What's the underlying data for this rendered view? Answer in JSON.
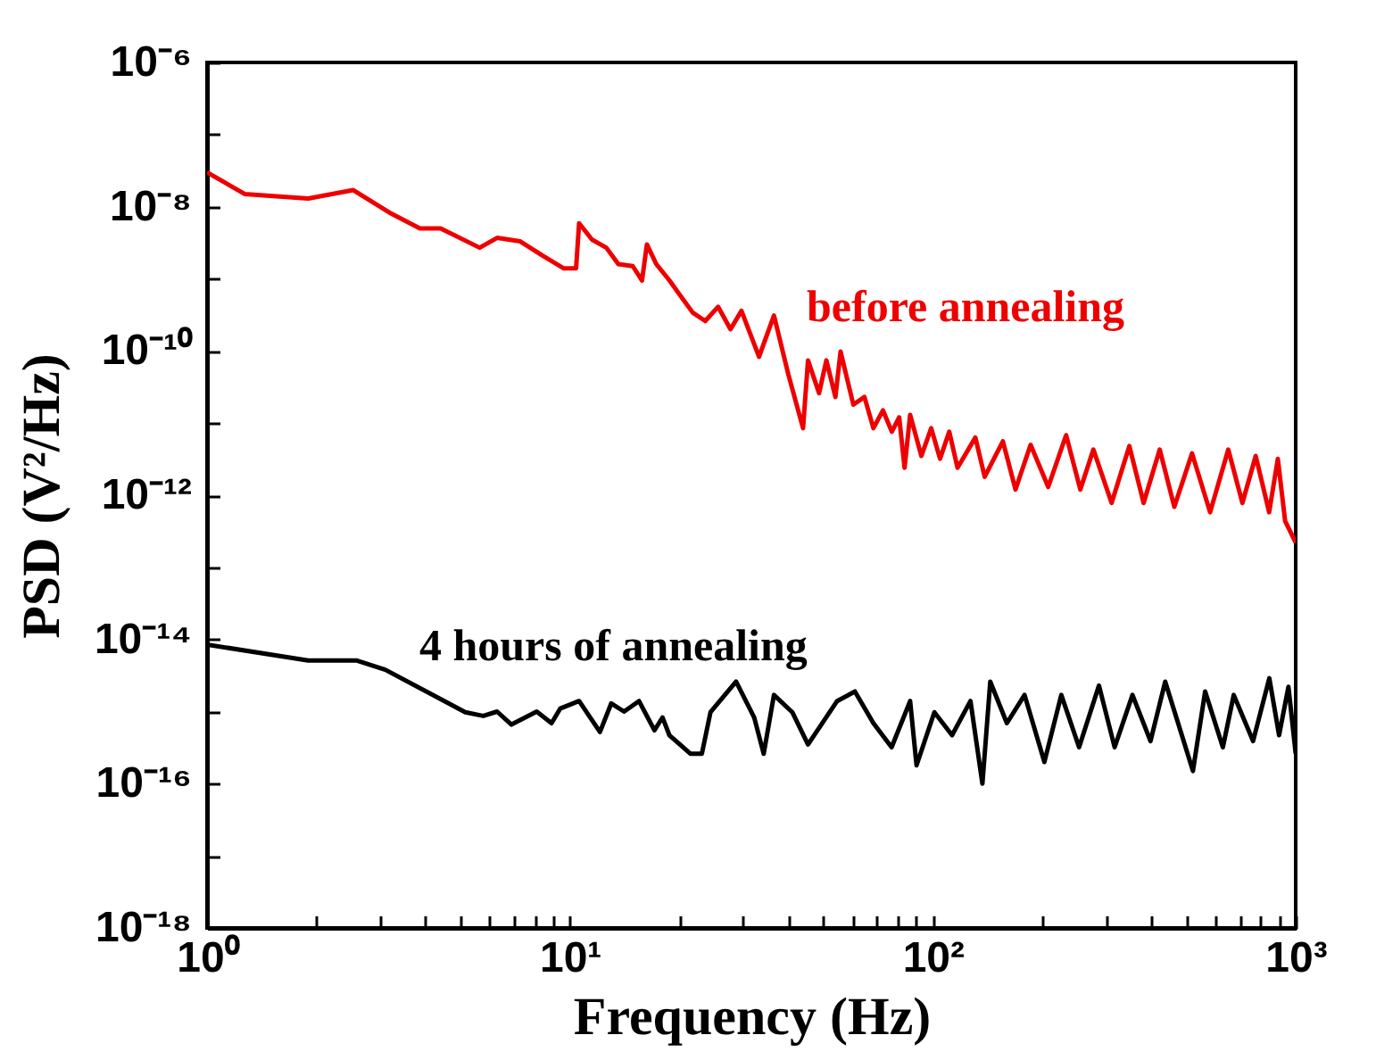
{
  "chart_data": {
    "type": "line",
    "xlabel": "Frequency (Hz)",
    "ylabel": "PSD (V²/Hz)",
    "log": "xy",
    "grid": false,
    "marker": "none",
    "line_style": "solid",
    "xlim": [
      1,
      1000
    ],
    "ylim": [
      1e-18,
      1e-06
    ],
    "xticks": [
      {
        "value": 1,
        "label": "10⁰"
      },
      {
        "value": 2,
        "label": null
      },
      {
        "value": 3,
        "label": null
      },
      {
        "value": 4,
        "label": null
      },
      {
        "value": 5,
        "label": null
      },
      {
        "value": 6,
        "label": null
      },
      {
        "value": 7,
        "label": null
      },
      {
        "value": 8,
        "label": null
      },
      {
        "value": 9,
        "label": null
      },
      {
        "value": 10,
        "label": "10¹"
      },
      {
        "value": 20,
        "label": null
      },
      {
        "value": 30,
        "label": null
      },
      {
        "value": 40,
        "label": null
      },
      {
        "value": 50,
        "label": null
      },
      {
        "value": 60,
        "label": null
      },
      {
        "value": 70,
        "label": null
      },
      {
        "value": 80,
        "label": null
      },
      {
        "value": 90,
        "label": null
      },
      {
        "value": 100,
        "label": "10²"
      },
      {
        "value": 200,
        "label": null
      },
      {
        "value": 300,
        "label": null
      },
      {
        "value": 400,
        "label": null
      },
      {
        "value": 500,
        "label": null
      },
      {
        "value": 600,
        "label": null
      },
      {
        "value": 700,
        "label": null
      },
      {
        "value": 800,
        "label": null
      },
      {
        "value": 900,
        "label": null
      },
      {
        "value": 1000,
        "label": "10³"
      }
    ],
    "yticks": [
      {
        "value": 1e-18,
        "label": "10⁻¹⁸"
      },
      {
        "value": 1e-17,
        "label": null
      },
      {
        "value": 1e-16,
        "label": "10⁻¹⁶"
      },
      {
        "value": 1e-15,
        "label": null
      },
      {
        "value": 1e-14,
        "label": "10⁻¹⁴"
      },
      {
        "value": 1e-13,
        "label": null
      },
      {
        "value": 1e-12,
        "label": "10⁻¹²"
      },
      {
        "value": 1e-11,
        "label": null
      },
      {
        "value": 1e-10,
        "label": "10⁻¹⁰"
      },
      {
        "value": 1e-09,
        "label": null
      },
      {
        "value": 1e-08,
        "label": "10⁻⁸"
      },
      {
        "value": 1e-07,
        "label": null
      },
      {
        "value": 1e-06,
        "label": "10⁻⁶"
      }
    ],
    "series": [
      {
        "name": "before annealing",
        "color": "#ee0000",
        "x": [
          1,
          1.27,
          1.9,
          2.53,
          3.18,
          3.86,
          4.4,
          5.64,
          6.3,
          7.3,
          8.4,
          9.6,
          10.4,
          10.6,
          11.5,
          12.6,
          13.6,
          14.9,
          15.8,
          16.3,
          17.3,
          18.8,
          21.8,
          23.6,
          25.6,
          27.7,
          29.7,
          33.2,
          36.5,
          40,
          43.9,
          45.3,
          48.6,
          50.9,
          53.9,
          55.7,
          60.4,
          64.8,
          68.6,
          72.9,
          77.1,
          80.8,
          83.6,
          86.6,
          93,
          99,
          104.7,
          111,
          117,
          131,
          139,
          156,
          169,
          186,
          208,
          233,
          255,
          277,
          311,
          348,
          381,
          422,
          463,
          518,
          581,
          652,
          713,
          776,
          845,
          893,
          935,
          1000
        ],
        "values": [
          3e-08,
          1.5e-08,
          1.3e-08,
          1.7e-08,
          8.3e-09,
          5e-09,
          5e-09,
          2.7e-09,
          3.7e-09,
          3.3e-09,
          2.1e-09,
          1.4e-09,
          1.4e-09,
          5.9e-09,
          3.5e-09,
          2.7e-09,
          1.6e-09,
          1.5e-09,
          9.5e-10,
          3e-09,
          1.6e-09,
          9.5e-10,
          3.4e-10,
          2.6e-10,
          4.1e-10,
          2e-10,
          3.6e-10,
          8.3e-11,
          3.1e-10,
          4.7e-11,
          8.5e-12,
          7.4e-11,
          2.6e-11,
          7.4e-11,
          2.3e-11,
          9.8e-11,
          1.8e-11,
          2.3e-11,
          8.5e-12,
          1.5e-11,
          7.6e-12,
          1.2e-11,
          2.4e-12,
          1.3e-11,
          3.5e-12,
          8.5e-12,
          3.2e-12,
          7.6e-12,
          2.4e-12,
          6.3e-12,
          1.8e-12,
          5.6e-12,
          1.2e-12,
          5e-12,
          1.3e-12,
          6.8e-12,
          1.2e-12,
          4.3e-12,
          7.8e-13,
          4.8e-12,
          7.8e-13,
          4.3e-12,
          6.9e-13,
          3.8e-12,
          5.8e-13,
          4.3e-12,
          7.8e-13,
          3.5e-12,
          5.8e-13,
          3.2e-12,
          4.4e-13,
          2.2e-13
        ]
      },
      {
        "name": "4 hours of annealing",
        "color": "#000000",
        "x": [
          1,
          1.9,
          2.59,
          3.1,
          5.15,
          5.77,
          6.3,
          6.9,
          8.1,
          8.9,
          9.4,
          10.6,
          12.1,
          13.0,
          14.1,
          15.5,
          17.1,
          18.0,
          18.8,
          21.5,
          23.1,
          24.4,
          28.7,
          32.2,
          34.2,
          36.5,
          41,
          45.3,
          54.5,
          61,
          68.6,
          77,
          86.6,
          90.2,
          101,
          113,
          127,
          137,
          144,
          160,
          179,
          203,
          226,
          253,
          287,
          317,
          355,
          398,
          437,
          521,
          563,
          630,
          675,
          763,
          846,
          900,
          955,
          1000
        ],
        "values": [
          8.5e-15,
          5.1e-15,
          5.1e-15,
          3.8e-15,
          9.8e-16,
          8.7e-16,
          1e-15,
          6.6e-16,
          1e-15,
          6.9e-16,
          1.1e-15,
          1.4e-15,
          5.2e-16,
          1.3e-15,
          1e-15,
          1.4e-15,
          5.5e-16,
          8.3e-16,
          4.7e-16,
          2.6e-16,
          2.6e-16,
          9.8e-16,
          2.6e-15,
          8.3e-16,
          2.6e-16,
          1.7e-15,
          9.8e-16,
          3.5e-16,
          1.4e-15,
          1.9e-15,
          6.9e-16,
          3.2e-16,
          1.4e-15,
          1.8e-16,
          9.8e-16,
          4.7e-16,
          1.4e-15,
          1e-16,
          2.6e-15,
          6.9e-16,
          1.7e-15,
          2e-16,
          1.7e-15,
          3.2e-16,
          2.3e-15,
          3.2e-16,
          1.7e-15,
          3.9e-16,
          2.6e-15,
          1.5e-16,
          1.9e-15,
          3.2e-16,
          1.7e-15,
          3.9e-16,
          2.9e-15,
          4.7e-16,
          2.2e-15,
          2.6e-16
        ]
      }
    ]
  }
}
